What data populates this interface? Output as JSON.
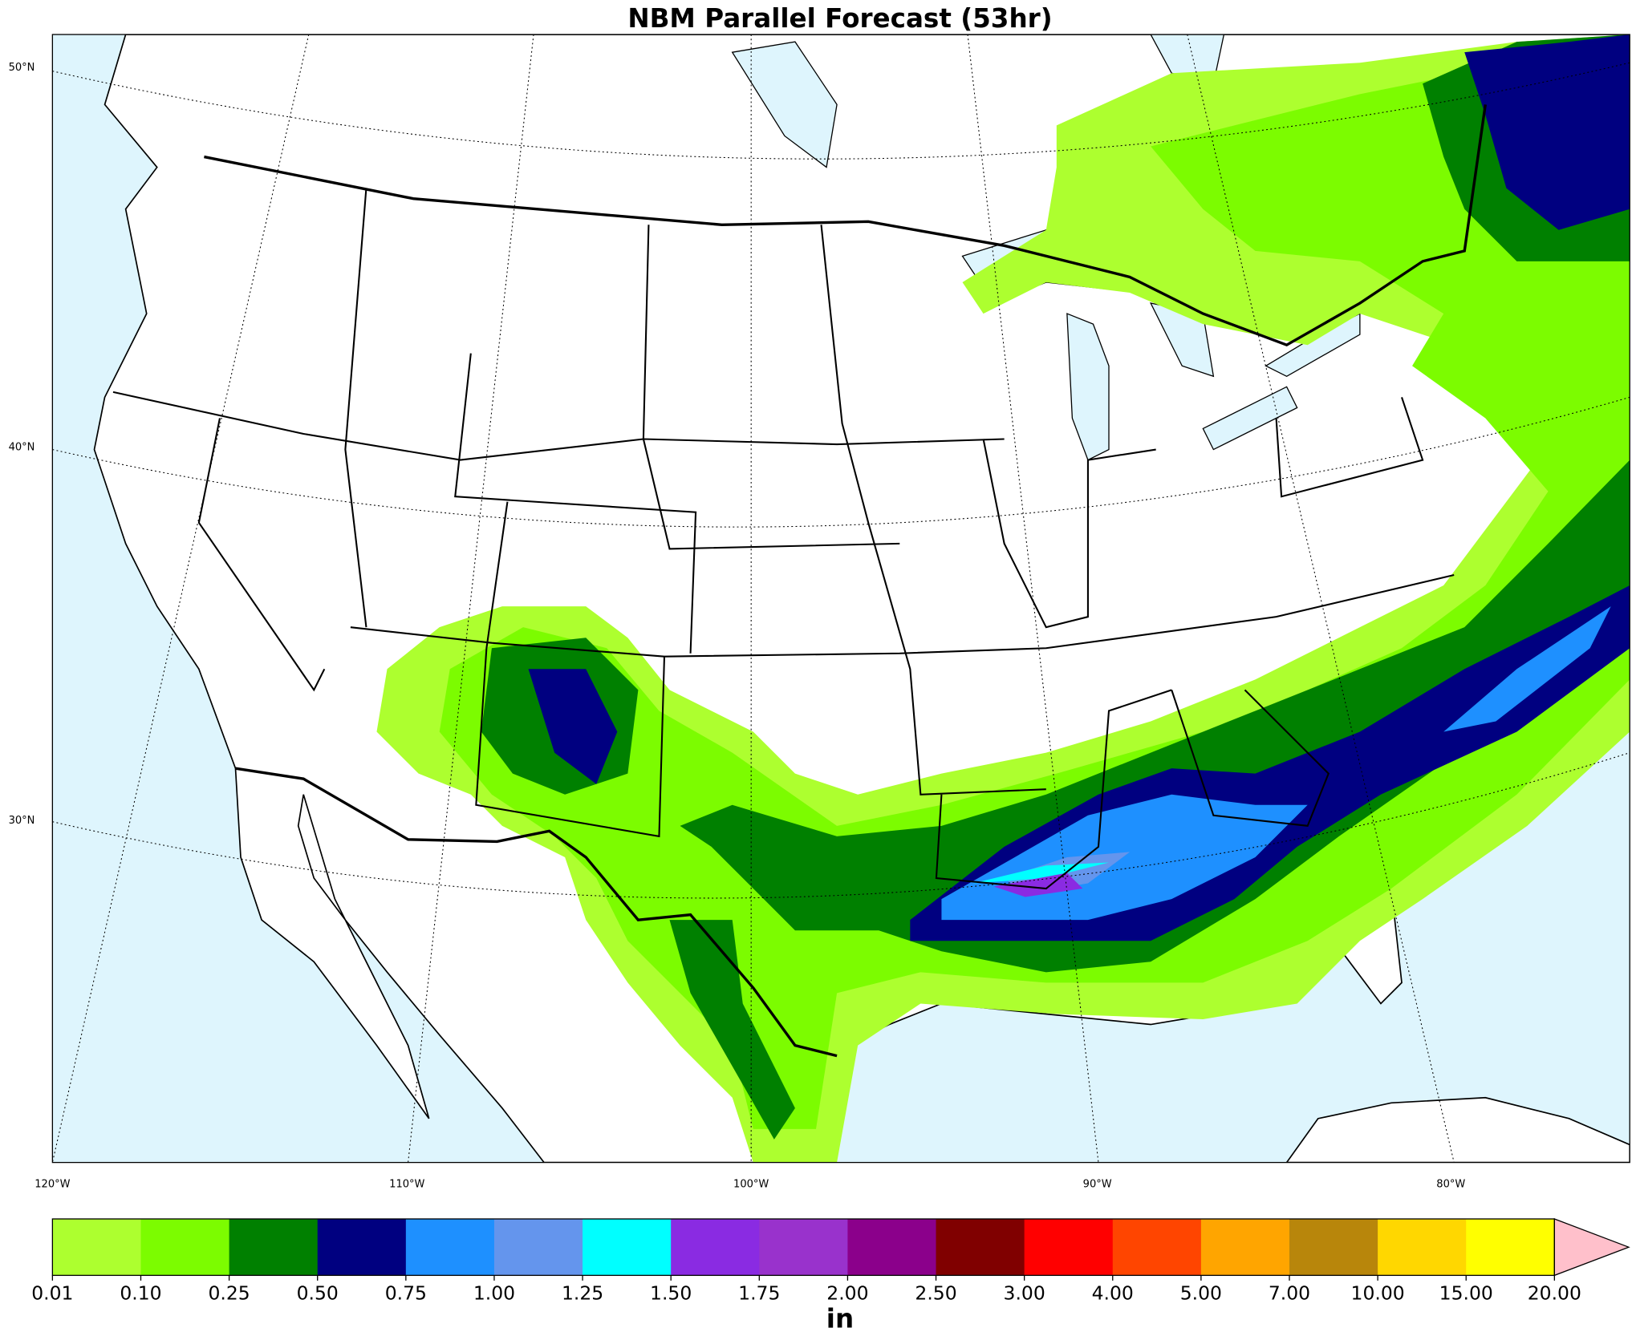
{
  "title": "NBM Parallel Forecast (53hr)",
  "map": {
    "lat_labels": [
      "50°N",
      "40°N",
      "30°N"
    ],
    "lon_labels": [
      "120°W",
      "110°W",
      "100°W",
      "90°W",
      "80°W"
    ]
  },
  "colorbar": {
    "label": "in",
    "ticks": [
      0.01,
      {
        "value": 0.1,
        "label": "0.10"
      },
      0.25,
      {
        "value": 0.5,
        "label": "0.50"
      },
      0.75,
      {
        "value": 1,
        "label": "1.00"
      },
      1.25,
      {
        "value": 1.5,
        "label": "1.50"
      },
      1.75,
      {
        "value": 2,
        "label": "2.00"
      },
      {
        "value": 2.5,
        "label": "2.50"
      },
      {
        "value": 3,
        "label": "3.00"
      },
      {
        "value": 4,
        "label": "4.00"
      },
      {
        "value": 5,
        "label": "5.00"
      },
      {
        "value": 7,
        "label": "7.00"
      },
      {
        "value": 10,
        "label": "10.00"
      },
      {
        "value": 15,
        "label": "15.00"
      },
      {
        "value": 20,
        "label": "20.00"
      }
    ],
    "colors": [
      "#adff2f",
      "#7cfc00",
      "#008000",
      "#000080",
      "#1e90ff",
      "#6495ed",
      "#00ffff",
      "#8a2be2",
      "#9932cc",
      "#8b008b",
      "#800000",
      "#ff0000",
      "#ff4500",
      "#ffa500",
      "#b8860b",
      "#ffd700",
      "#ffff00"
    ],
    "extend_color": "#ffc0cb"
  }
}
